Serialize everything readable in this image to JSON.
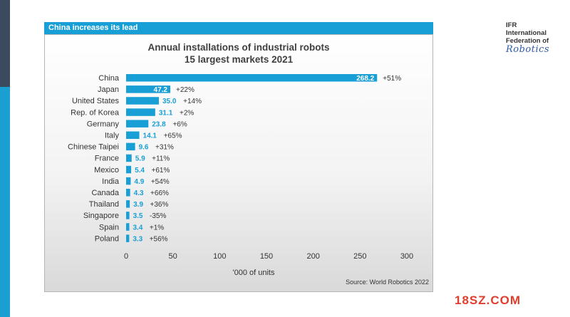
{
  "header": {
    "title": "China increases its lead"
  },
  "logo": {
    "line1": "IFR",
    "line2": "International",
    "line3": "Federation of",
    "script": "Robotics"
  },
  "watermark": "18SZ.COM",
  "source": "Source: World Robotics 2022",
  "chart_data": {
    "type": "bar",
    "orientation": "horizontal",
    "title_line1": "Annual installations of industrial robots",
    "title_line2": "15 largest markets 2021",
    "xlabel": "'000 of units",
    "xlim": [
      0,
      300
    ],
    "xticks": [
      0,
      50,
      100,
      150,
      200,
      250,
      300
    ],
    "bar_color": "#189fd6",
    "value_color": "#189fd6",
    "categories": [
      "China",
      "Japan",
      "United States",
      "Rep. of Korea",
      "Germany",
      "Italy",
      "Chinese Taipei",
      "France",
      "Mexico",
      "India",
      "Canada",
      "Thailand",
      "Singapore",
      "Spain",
      "Poland"
    ],
    "values": [
      268.2,
      47.2,
      35.0,
      31.1,
      23.8,
      14.1,
      9.6,
      5.9,
      5.4,
      4.9,
      4.3,
      3.9,
      3.5,
      3.4,
      3.3
    ],
    "value_labels": [
      "268.2",
      "47.2",
      "35.0",
      "31.1",
      "23.8",
      "14.1",
      "9.6",
      "5.9",
      "5.4",
      "4.9",
      "4.3",
      "3.9",
      "3.5",
      "3.4",
      "3.3"
    ],
    "growth_labels": [
      "+51%",
      "+22%",
      "+14%",
      "+2%",
      "+6%",
      "+65%",
      "+31%",
      "+11%",
      "+61%",
      "+54%",
      "+66%",
      "+36%",
      "-35%",
      "+1%",
      "+56%"
    ]
  }
}
